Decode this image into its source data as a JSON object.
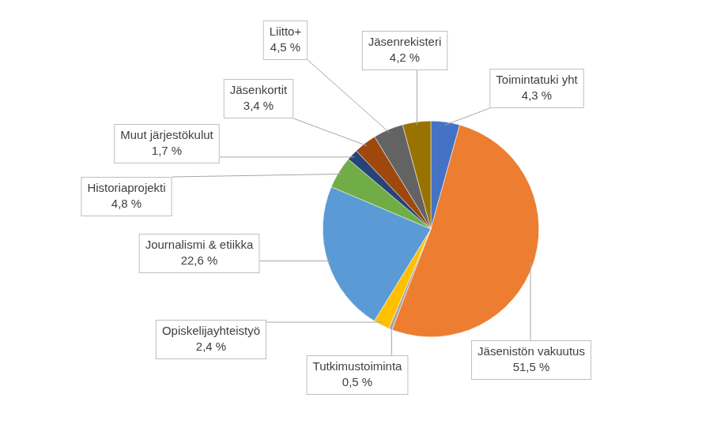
{
  "chart_data": {
    "type": "pie",
    "categories": [
      "Toimintatuki yht",
      "Jäsenistön vakuutus",
      "Tutkimustoiminta",
      "Opiskelijayhteistyö",
      "Journalismi & etiikka",
      "Historiaprojekti",
      "Muut järjestökulut",
      "Jäsenkortit",
      "Liitto+",
      "Jäsenrekisteri"
    ],
    "values": [
      4.3,
      51.5,
      0.5,
      2.4,
      22.6,
      4.8,
      1.7,
      3.4,
      4.5,
      4.2
    ],
    "value_labels": [
      "4,3 %",
      "51,5 %",
      "0,5 %",
      "2,4 %",
      "22,6 %",
      "4,8 %",
      "1,7 %",
      "3,4 %",
      "4,5 %",
      "4,2 %"
    ],
    "colors": [
      "#4472c4",
      "#ed7d31",
      "#a5a5a5",
      "#ffc000",
      "#5b9bd5",
      "#70ad47",
      "#264478",
      "#9e480e",
      "#636363",
      "#997300"
    ],
    "data_labels": true
  }
}
